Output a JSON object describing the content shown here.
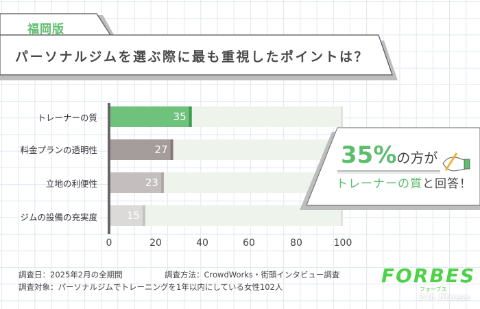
{
  "header": {
    "region": "福岡版",
    "title": "パーソナルジムを選ぶ際に最も重視したポイントは？"
  },
  "callout": {
    "percent": "35%",
    "line1_rest": "の方が",
    "line2_highlight": "トレーナーの質",
    "line2_rest": "と回答！",
    "icon": "writing-hand-icon"
  },
  "chart_data": {
    "type": "bar",
    "orientation": "horizontal",
    "categories": [
      "トレーナーの質",
      "料金プランの透明性",
      "立地の利便性",
      "ジムの設備の充実度"
    ],
    "values": [
      35,
      27,
      23,
      15
    ],
    "colors": [
      "#6fc27c",
      "#a59c9c",
      "#c4bebe",
      "#dcd9d9"
    ],
    "track_color": "#eef3ec",
    "xlim": [
      0,
      100
    ],
    "xticks": [
      "0",
      "20",
      "40",
      "60",
      "80",
      "100"
    ],
    "grid": false
  },
  "footer": {
    "survey_date": "調査日：2025年2月の全期間",
    "survey_method": "調査方法：CrowdWorks・街頭インタビュー調査",
    "survey_target": "調査対象：パーソナルジムでトレーニングを1年以内にしている女性102人"
  },
  "logo": {
    "name": "FORBES",
    "kana": "フォーブス",
    "sub": "24h fitness"
  }
}
